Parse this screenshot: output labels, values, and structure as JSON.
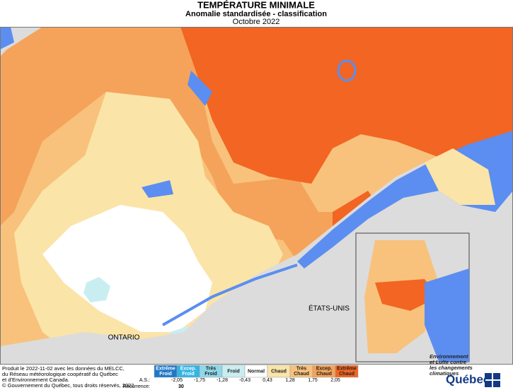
{
  "header": {
    "title": "TEMPÉRATURE MINIMALE",
    "subtitle": "Anomalie standardisée - classification",
    "date": "Octobre 2022"
  },
  "map": {
    "places": [
      "ONTARIO",
      "ÉTATS-UNIS"
    ]
  },
  "legend": {
    "classes": [
      {
        "label": [
          "Extrême",
          "Froid"
        ],
        "color": "#1f78c8"
      },
      {
        "label": [
          "Excep.",
          "Froid"
        ],
        "color": "#33b5e5"
      },
      {
        "label": [
          "Très",
          "Froid"
        ],
        "color": "#8fd8ea"
      },
      {
        "label": [
          "Froid"
        ],
        "color": "#c9eef2"
      },
      {
        "label": [
          "Normal"
        ],
        "color": "#ffffff"
      },
      {
        "label": [
          "Chaud"
        ],
        "color": "#fbe4a8"
      },
      {
        "label": [
          "Très",
          "Chaud"
        ],
        "color": "#f8c27c"
      },
      {
        "label": [
          "Excep.",
          "Chaud"
        ],
        "color": "#f5a35a"
      },
      {
        "label": [
          "Extrême",
          "Chaud"
        ],
        "color": "#f26522"
      }
    ],
    "thresholds": [
      "-2,05",
      "-1,75",
      "-1,28",
      "-0,43",
      "0,43",
      "1,28",
      "1,75",
      "2,05"
    ],
    "as_label": "A.S.:",
    "recurrence_label": "Récurrence:",
    "recurrence": "30"
  },
  "footer": {
    "credits": [
      "Produit le 2022-11-02 avec les données du MELCC,",
      "du Réseau météorologique coopératif du Québec",
      "et d'Environnement Canada."
    ],
    "copyright": "© Gouvernement du Québec, tous droits réservés, 2022"
  },
  "logo": {
    "ministry": [
      "Environnement",
      "et Lutte contre",
      "les changements",
      "climatiques"
    ],
    "name": "Québec"
  }
}
